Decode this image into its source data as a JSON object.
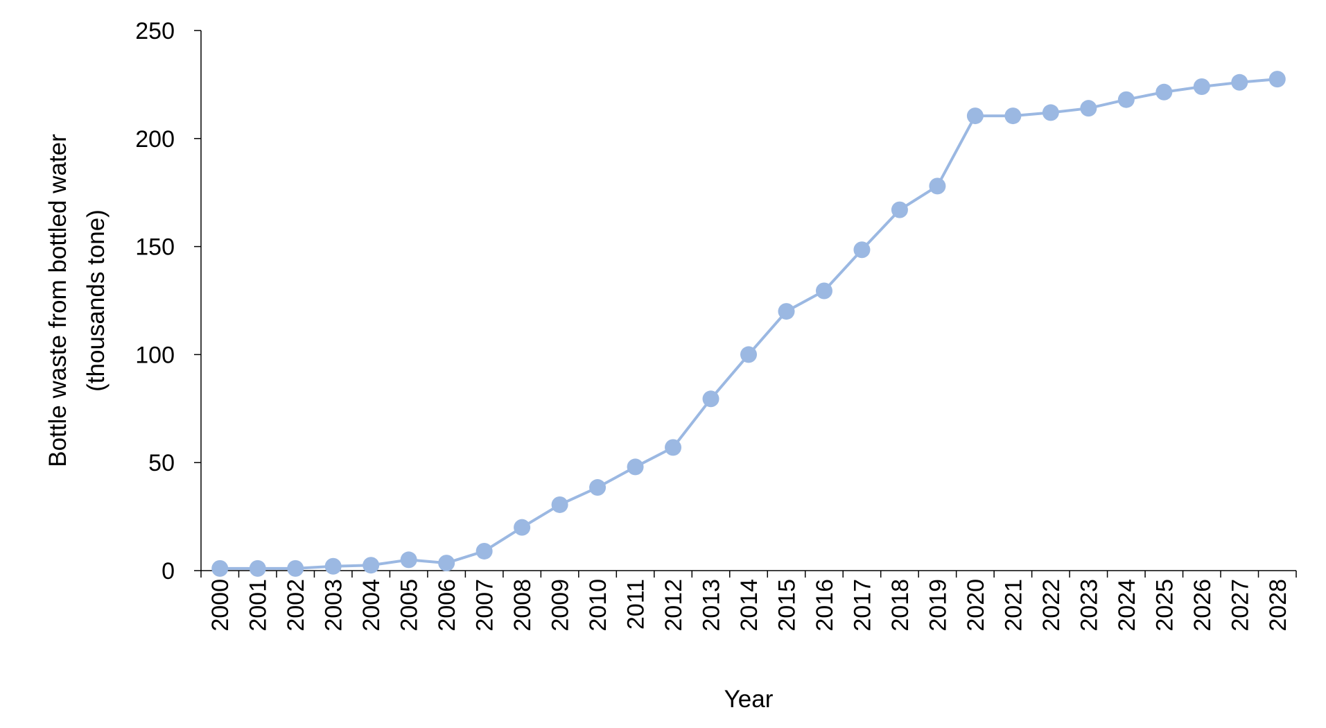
{
  "chart_data": {
    "type": "line",
    "title": "",
    "xlabel": "Year",
    "ylabel_lines": [
      "Bottle waste from bottled water",
      "(thousands tone)"
    ],
    "ylim": [
      0,
      250
    ],
    "yticks": [
      0,
      50,
      100,
      150,
      200,
      250
    ],
    "grid": false,
    "legend": "none",
    "categories": [
      "2000",
      "2001",
      "2002",
      "2003",
      "2004",
      "2005",
      "2006",
      "2007",
      "2008",
      "2009",
      "2010",
      "2011",
      "2012",
      "2013",
      "2014",
      "2015",
      "2016",
      "2017",
      "2018",
      "2019",
      "2020",
      "2021",
      "2022",
      "2023",
      "2024",
      "2025",
      "2026",
      "2027",
      "2028"
    ],
    "series": [
      {
        "color": "#9BB8E2",
        "values": [
          1,
          1,
          1,
          2,
          2.5,
          5,
          3.5,
          9,
          20,
          30.5,
          38.5,
          48,
          57,
          79.5,
          100,
          120,
          129.5,
          148.5,
          167,
          178,
          210.5,
          210.5,
          212,
          214,
          218,
          221.5,
          224,
          226,
          227.5
        ]
      }
    ]
  },
  "colors": {
    "axis": "#000000",
    "line": "#9BB8E2",
    "marker": "#9BB8E2"
  }
}
